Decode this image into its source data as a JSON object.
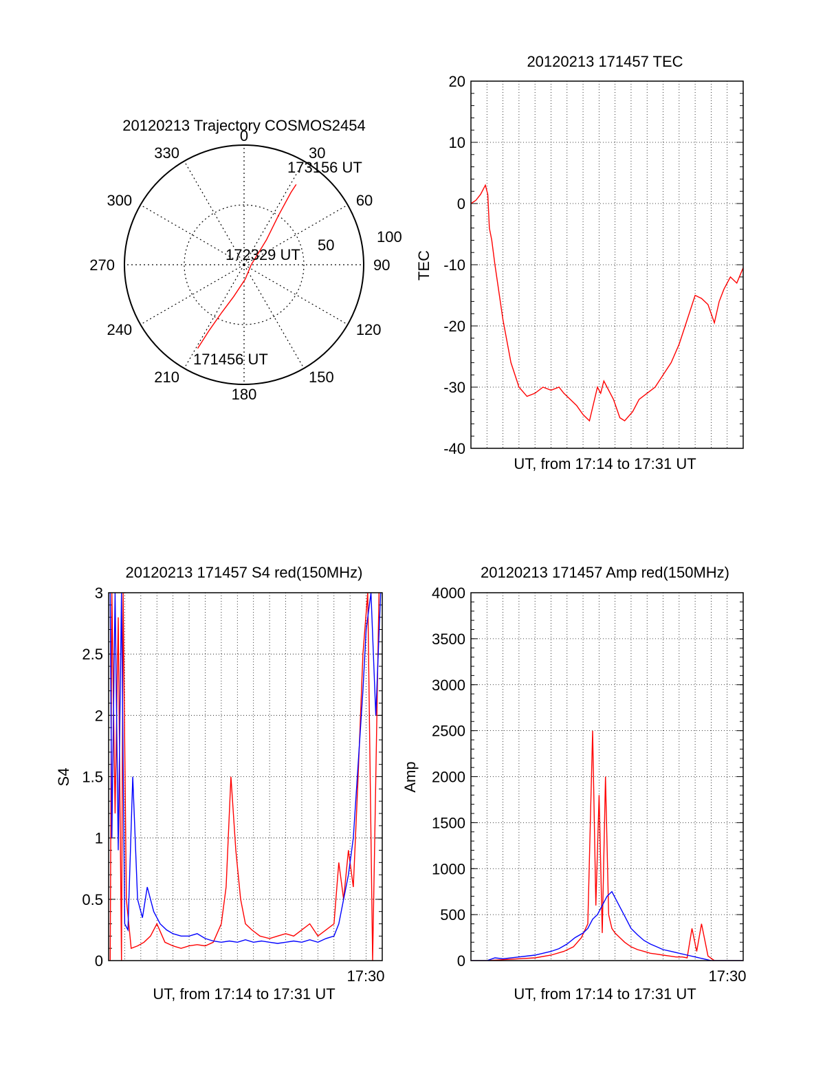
{
  "colors": {
    "red": "#ff0000",
    "blue": "#0000ff",
    "axis": "#000000",
    "grid": "#000000"
  },
  "chart_data": [
    {
      "id": "polar",
      "type": "scatter",
      "projection": "polar",
      "title": "20120213 Trajectory COSMOS2454",
      "azimuth_ticks": [
        "0",
        "30",
        "60",
        "90",
        "120",
        "150",
        "180",
        "210",
        "240",
        "270",
        "300",
        "330"
      ],
      "radius_ticks": [
        "50",
        "100"
      ],
      "radius_range": [
        0,
        100
      ],
      "grid": true,
      "annotations": [
        "173156 UT",
        "172329 UT",
        "171456 UT"
      ],
      "series": [
        {
          "color": "red",
          "points": [
            {
              "az": 209,
              "r": 80
            },
            {
              "az": 208,
              "r": 62
            },
            {
              "az": 205,
              "r": 44
            },
            {
              "az": 198,
              "r": 28
            },
            {
              "az": 175,
              "r": 12
            },
            {
              "az": 90,
              "r": 6
            },
            {
              "az": 42,
              "r": 28
            },
            {
              "az": 35,
              "r": 50
            },
            {
              "az": 33,
              "r": 72
            },
            {
              "az": 33,
              "r": 80
            }
          ]
        }
      ]
    },
    {
      "id": "tec",
      "type": "line",
      "title": "20120213 171457 TEC",
      "xlabel": "UT, from 17:14 to 17:31 UT",
      "ylabel": "TEC",
      "xlim": [
        0,
        17
      ],
      "ylim": [
        -40,
        20
      ],
      "yticks": [
        "20",
        "10",
        "0",
        "-10",
        "-20",
        "-30",
        "-40"
      ],
      "xticks_shown": [],
      "grid": true,
      "series": [
        {
          "color": "red",
          "x": [
            0.0,
            0.3,
            0.6,
            0.9,
            1.05,
            1.15,
            1.3,
            1.5,
            2.0,
            2.5,
            3.0,
            3.5,
            4.0,
            4.5,
            5.0,
            5.5,
            5.8,
            6.2,
            6.6,
            7.0,
            7.4,
            7.9,
            8.1,
            8.3,
            8.5,
            8.9,
            9.3,
            9.6,
            10.1,
            10.5,
            11.0,
            11.5,
            12.0,
            12.5,
            13.0,
            13.5,
            14.0,
            14.4,
            14.8,
            15.2,
            15.5,
            15.8,
            16.2,
            16.6,
            17.0
          ],
          "y": [
            0,
            0.5,
            1.5,
            3,
            1.5,
            -4,
            -6,
            -10,
            -19,
            -26,
            -30,
            -31.5,
            -31,
            -30,
            -30.5,
            -30,
            -31,
            -32,
            -33,
            -34.5,
            -35.5,
            -30,
            -31,
            -29,
            -30,
            -32,
            -35,
            -35.5,
            -34,
            -32,
            -31,
            -30,
            -28,
            -26,
            -23,
            -19,
            -15,
            -15.5,
            -16.5,
            -19.5,
            -16,
            -14,
            -12,
            -13,
            -10.5
          ]
        }
      ]
    },
    {
      "id": "s4",
      "type": "line",
      "title": "20120213 171457 S4 red(150MHz)",
      "xlabel": "UT, from 17:14 to 17:31 UT",
      "ylabel": "S4",
      "xlim": [
        0,
        17
      ],
      "ylim": [
        0,
        3
      ],
      "yticks": [
        "3",
        "2.5",
        "2",
        "1.5",
        "1",
        "0.5",
        "0"
      ],
      "xticks_shown": [
        "17:30"
      ],
      "grid": true,
      "series": [
        {
          "color": "red",
          "x": [
            0.1,
            0.2,
            0.4,
            0.6,
            0.8,
            0.9,
            1.1,
            1.4,
            1.8,
            2.2,
            2.6,
            3.0,
            3.5,
            4.0,
            4.5,
            5.0,
            5.5,
            6.0,
            6.5,
            7.0,
            7.3,
            7.6,
            7.9,
            8.2,
            8.5,
            8.9,
            9.4,
            10.0,
            10.5,
            11.0,
            11.5,
            12.0,
            12.5,
            13.0,
            13.5,
            14.0,
            14.3,
            14.6,
            14.9,
            15.2,
            15.5,
            15.8,
            16.1,
            16.4,
            16.8
          ],
          "y": [
            0,
            3,
            1.2,
            2.8,
            0,
            3,
            0.5,
            0.1,
            0.12,
            0.15,
            0.2,
            0.3,
            0.15,
            0.12,
            0.1,
            0.12,
            0.13,
            0.12,
            0.15,
            0.3,
            0.6,
            1.5,
            0.9,
            0.5,
            0.3,
            0.25,
            0.2,
            0.18,
            0.2,
            0.22,
            0.2,
            0.25,
            0.3,
            0.2,
            0.25,
            0.3,
            0.8,
            0.5,
            0.9,
            0.6,
            1.5,
            2.5,
            3,
            0,
            3
          ]
        },
        {
          "color": "blue",
          "x": [
            0.1,
            0.2,
            0.4,
            0.6,
            0.8,
            1.0,
            1.2,
            1.5,
            1.8,
            2.1,
            2.4,
            2.8,
            3.2,
            3.6,
            4.0,
            4.5,
            5.0,
            5.5,
            6.0,
            6.5,
            7.0,
            7.5,
            8.0,
            8.5,
            9.0,
            9.5,
            10.0,
            10.5,
            11.0,
            11.5,
            12.0,
            12.5,
            13.0,
            13.5,
            14.0,
            14.3,
            14.6,
            14.9,
            15.2,
            15.5,
            15.8,
            16.0,
            16.3,
            16.6,
            16.9
          ],
          "y": [
            3,
            1.0,
            3,
            0.9,
            3,
            0.3,
            0.25,
            1.5,
            0.5,
            0.35,
            0.6,
            0.4,
            0.3,
            0.25,
            0.22,
            0.2,
            0.2,
            0.22,
            0.18,
            0.16,
            0.15,
            0.16,
            0.15,
            0.17,
            0.15,
            0.16,
            0.15,
            0.14,
            0.15,
            0.16,
            0.15,
            0.17,
            0.15,
            0.18,
            0.2,
            0.3,
            0.5,
            0.7,
            1.0,
            1.6,
            2.2,
            2.7,
            3,
            2.0,
            3
          ]
        }
      ]
    },
    {
      "id": "amp",
      "type": "line",
      "title": "20120213 171457 Amp red(150MHz)",
      "xlabel": "UT, from 17:14 to 17:31 UT",
      "ylabel": "Amp",
      "xlim": [
        0,
        17
      ],
      "ylim": [
        0,
        4000
      ],
      "yticks": [
        "4000",
        "3500",
        "3000",
        "2500",
        "2000",
        "1500",
        "1000",
        "500",
        "0"
      ],
      "xticks_shown": [
        "17:30"
      ],
      "grid": true,
      "series": [
        {
          "color": "red",
          "x": [
            0.0,
            1.0,
            2.0,
            3.0,
            4.0,
            5.0,
            5.8,
            6.4,
            6.9,
            7.3,
            7.6,
            7.8,
            8.0,
            8.2,
            8.4,
            8.6,
            8.8,
            9.0,
            9.3,
            9.6,
            10.0,
            10.4,
            10.8,
            11.2,
            11.6,
            12.0,
            12.4,
            12.8,
            13.2,
            13.5,
            13.8,
            14.1,
            14.4,
            14.8,
            15.2,
            16.0,
            17.0
          ],
          "y": [
            0,
            0,
            10,
            20,
            30,
            60,
            100,
            150,
            250,
            400,
            2500,
            600,
            1800,
            300,
            2000,
            500,
            350,
            300,
            250,
            200,
            150,
            120,
            100,
            80,
            70,
            60,
            50,
            40,
            40,
            30,
            350,
            100,
            400,
            50,
            0,
            0,
            0
          ]
        },
        {
          "color": "blue",
          "x": [
            0.0,
            1.0,
            1.5,
            2.0,
            3.0,
            4.0,
            5.0,
            5.5,
            6.0,
            6.5,
            7.0,
            7.3,
            7.6,
            7.9,
            8.2,
            8.5,
            8.8,
            9.1,
            9.4,
            9.7,
            10.0,
            10.4,
            10.8,
            11.2,
            11.6,
            12.0,
            12.5,
            13.0,
            13.5,
            14.0,
            14.5,
            15.0,
            16.0,
            17.0
          ],
          "y": [
            0,
            0,
            30,
            20,
            40,
            60,
            100,
            130,
            180,
            250,
            300,
            350,
            450,
            500,
            600,
            700,
            750,
            650,
            550,
            450,
            350,
            280,
            220,
            180,
            150,
            120,
            100,
            80,
            60,
            40,
            20,
            0,
            0,
            0
          ]
        }
      ]
    }
  ]
}
